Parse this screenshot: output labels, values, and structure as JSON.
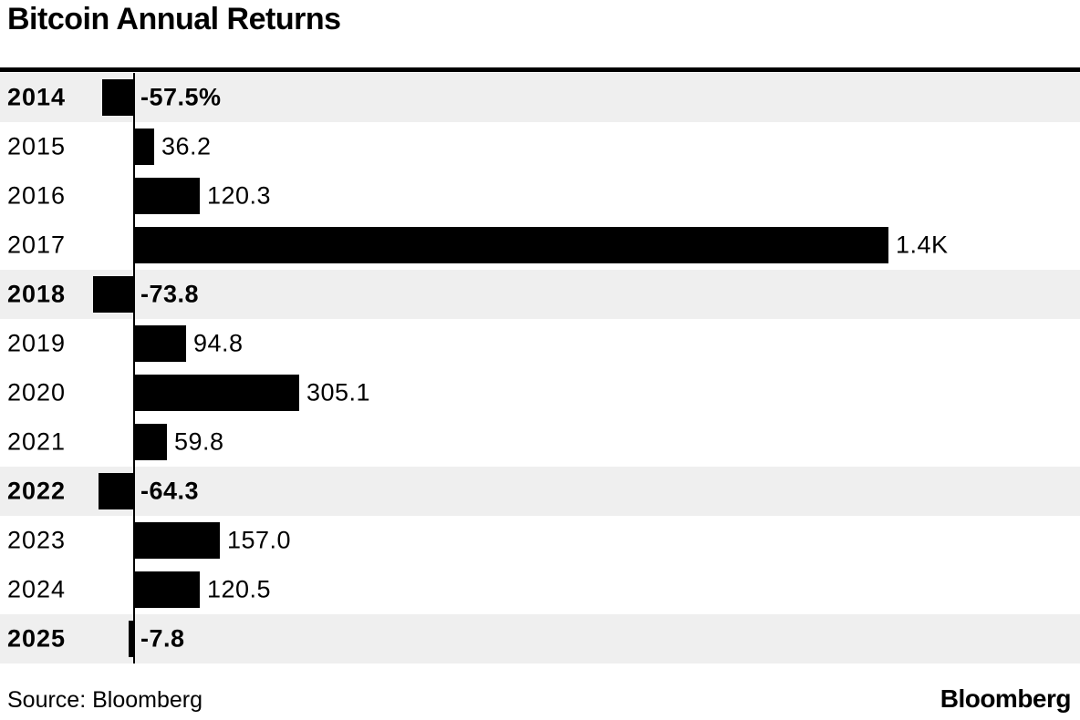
{
  "title": "Bitcoin Annual Returns",
  "footer": {
    "source": "Source: Bloomberg",
    "logo": "Bloomberg"
  },
  "colors": {
    "bar": "#000000",
    "negative_row_background": "#efefef",
    "text": "#000000",
    "background": "#ffffff"
  },
  "chart_data": {
    "type": "bar",
    "orientation": "horizontal",
    "title": "Bitcoin Annual Returns",
    "xlabel": "",
    "ylabel": "",
    "categories": [
      "2014",
      "2015",
      "2016",
      "2017",
      "2018",
      "2019",
      "2020",
      "2021",
      "2022",
      "2023",
      "2024",
      "2025"
    ],
    "values": [
      -57.5,
      36.2,
      120.3,
      1400,
      -73.8,
      94.8,
      305.1,
      59.8,
      -64.3,
      157.0,
      120.5,
      -7.8
    ],
    "value_labels": [
      "-57.5%",
      "36.2",
      "120.3",
      "1.4K",
      "-73.8",
      "94.8",
      "305.1",
      "59.8",
      "-64.3",
      "157.0",
      "120.5",
      "-7.8"
    ],
    "unit": "percent",
    "xlim": [
      -100,
      1450
    ],
    "grid": false,
    "legend": false,
    "negative_rows_highlighted": true
  }
}
